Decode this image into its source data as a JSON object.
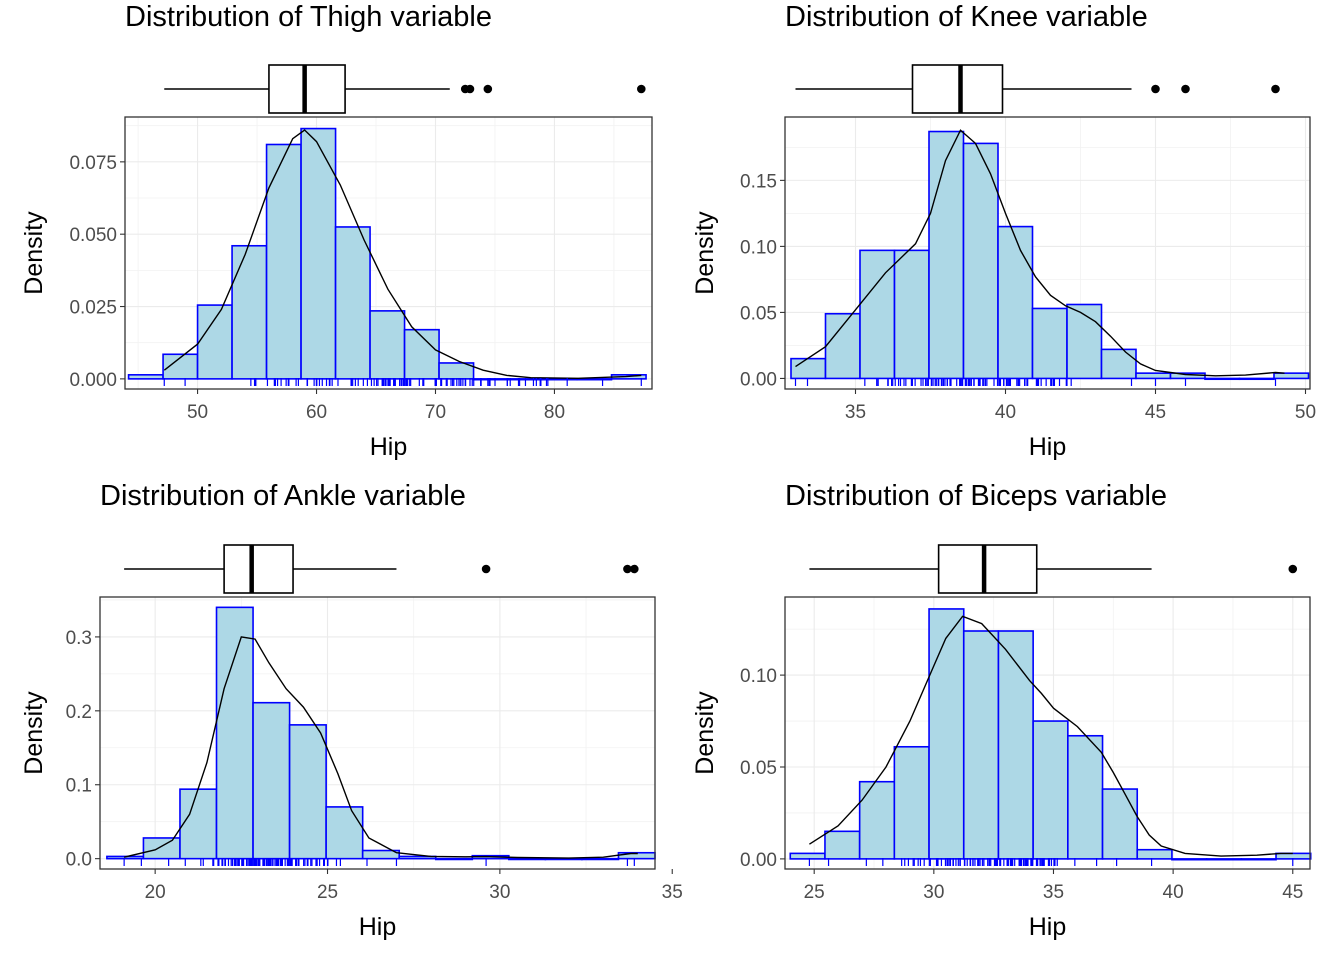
{
  "chart_data": [
    {
      "type": "histogram",
      "title": "Distribution of Thigh variable",
      "xlabel": "Hip",
      "ylabel": "Density",
      "xlim": [
        43.9,
        88.2
      ],
      "ylim": [
        -0.0035,
        0.0905
      ],
      "x_ticks": [
        50,
        60,
        70,
        80
      ],
      "y_ticks": [
        0.0,
        0.025,
        0.05,
        0.075
      ],
      "y_tick_labels": [
        "0.000",
        "0.025",
        "0.050",
        "0.075"
      ],
      "bin_width": 2.9,
      "bins": [
        {
          "x0": 44.2,
          "x1": 47.1,
          "density": 0.0014
        },
        {
          "x0": 47.1,
          "x1": 50.0,
          "density": 0.0085
        },
        {
          "x0": 50.0,
          "x1": 52.9,
          "density": 0.0255
        },
        {
          "x0": 52.9,
          "x1": 55.8,
          "density": 0.046
        },
        {
          "x0": 55.8,
          "x1": 58.7,
          "density": 0.081
        },
        {
          "x0": 58.7,
          "x1": 61.6,
          "density": 0.0865
        },
        {
          "x0": 61.6,
          "x1": 64.5,
          "density": 0.0525
        },
        {
          "x0": 64.5,
          "x1": 67.4,
          "density": 0.0235
        },
        {
          "x0": 67.4,
          "x1": 70.3,
          "density": 0.017
        },
        {
          "x0": 70.3,
          "x1": 73.2,
          "density": 0.0055
        },
        {
          "x0": 73.2,
          "x1": 76.1,
          "density": 0.0
        },
        {
          "x0": 76.1,
          "x1": 79.0,
          "density": 0.0
        },
        {
          "x0": 79.0,
          "x1": 81.9,
          "density": 0.0
        },
        {
          "x0": 81.9,
          "x1": 84.8,
          "density": 0.0
        },
        {
          "x0": 84.8,
          "x1": 87.7,
          "density": 0.0014
        }
      ],
      "density_curve": [
        [
          47.2,
          0.003
        ],
        [
          50,
          0.012
        ],
        [
          52,
          0.024
        ],
        [
          54,
          0.043
        ],
        [
          56,
          0.066
        ],
        [
          58,
          0.083
        ],
        [
          59,
          0.086
        ],
        [
          60,
          0.082
        ],
        [
          62,
          0.067
        ],
        [
          64,
          0.048
        ],
        [
          66,
          0.031
        ],
        [
          68,
          0.018
        ],
        [
          70,
          0.01
        ],
        [
          72,
          0.006
        ],
        [
          74,
          0.003
        ],
        [
          76,
          0.0012
        ],
        [
          78,
          0.0004
        ],
        [
          82,
          0.0002
        ],
        [
          86,
          0.0008
        ],
        [
          87.3,
          0.0012
        ]
      ],
      "rug_range": [
        47.2,
        87.3
      ],
      "rug_extra": [
        47.2,
        72.5,
        72.9,
        74.4,
        87.3
      ],
      "boxplot": {
        "min": 47.2,
        "q1": 56.0,
        "median": 59.0,
        "q3": 62.4,
        "max": 71.2,
        "outliers": [
          72.5,
          72.9,
          74.4,
          87.3
        ]
      }
    },
    {
      "type": "histogram",
      "title": "Distribution of Knee variable",
      "xlabel": "Hip",
      "ylabel": "Density",
      "xlim": [
        32.65,
        50.15
      ],
      "ylim": [
        -0.008,
        0.198
      ],
      "x_ticks": [
        35,
        40,
        45,
        50
      ],
      "y_ticks": [
        0.0,
        0.05,
        0.1,
        0.15
      ],
      "y_tick_labels": [
        "0.00",
        "0.05",
        "0.10",
        "0.15"
      ],
      "bin_width": 1.15,
      "bins": [
        {
          "x0": 32.85,
          "x1": 34.0,
          "density": 0.015
        },
        {
          "x0": 34.0,
          "x1": 35.15,
          "density": 0.049
        },
        {
          "x0": 35.15,
          "x1": 36.3,
          "density": 0.097
        },
        {
          "x0": 36.3,
          "x1": 37.45,
          "density": 0.097
        },
        {
          "x0": 37.45,
          "x1": 38.6,
          "density": 0.187
        },
        {
          "x0": 38.6,
          "x1": 39.75,
          "density": 0.178
        },
        {
          "x0": 39.75,
          "x1": 40.9,
          "density": 0.115
        },
        {
          "x0": 40.9,
          "x1": 42.05,
          "density": 0.053
        },
        {
          "x0": 42.05,
          "x1": 43.2,
          "density": 0.056
        },
        {
          "x0": 43.2,
          "x1": 44.35,
          "density": 0.022
        },
        {
          "x0": 44.35,
          "x1": 45.5,
          "density": 0.004
        },
        {
          "x0": 45.5,
          "x1": 46.65,
          "density": 0.004
        },
        {
          "x0": 46.65,
          "x1": 47.8,
          "density": 0.0
        },
        {
          "x0": 47.8,
          "x1": 48.95,
          "density": 0.0
        },
        {
          "x0": 48.95,
          "x1": 50.1,
          "density": 0.004
        }
      ],
      "density_curve": [
        [
          33.0,
          0.009
        ],
        [
          34,
          0.024
        ],
        [
          35,
          0.052
        ],
        [
          36,
          0.08
        ],
        [
          37,
          0.102
        ],
        [
          37.5,
          0.125
        ],
        [
          38,
          0.165
        ],
        [
          38.5,
          0.188
        ],
        [
          39,
          0.178
        ],
        [
          39.5,
          0.155
        ],
        [
          40,
          0.125
        ],
        [
          40.5,
          0.097
        ],
        [
          41,
          0.077
        ],
        [
          41.5,
          0.063
        ],
        [
          42,
          0.055
        ],
        [
          42.5,
          0.05
        ],
        [
          43,
          0.043
        ],
        [
          43.5,
          0.032
        ],
        [
          44,
          0.02
        ],
        [
          44.5,
          0.011
        ],
        [
          45,
          0.006
        ],
        [
          46,
          0.003
        ],
        [
          47,
          0.002
        ],
        [
          48,
          0.0025
        ],
        [
          49,
          0.0045
        ],
        [
          49.3,
          0.004
        ]
      ],
      "rug_range": [
        34.0,
        43.8
      ],
      "rug_extra": [
        33.0,
        33.4,
        44.2,
        45.0,
        46.0,
        49.0
      ],
      "boxplot": {
        "min": 33.0,
        "q1": 36.9,
        "median": 38.5,
        "q3": 39.9,
        "max": 44.2,
        "outliers": [
          45.0,
          46.0,
          49.0
        ]
      }
    },
    {
      "type": "histogram",
      "title": "Distribution of Ankle variable",
      "xlabel": "Hip",
      "ylabel": "Density",
      "xlim": [
        18.4,
        34.5
      ],
      "ylim": [
        -0.014,
        0.354
      ],
      "x_ticks": [
        20,
        25,
        30,
        35
      ],
      "y_ticks": [
        0.0,
        0.1,
        0.2,
        0.3
      ],
      "y_tick_labels": [
        "0.0",
        "0.1",
        "0.2",
        "0.3"
      ],
      "bin_width": 1.06,
      "bins": [
        {
          "x0": 18.6,
          "x1": 19.66,
          "density": 0.003
        },
        {
          "x0": 19.66,
          "x1": 20.72,
          "density": 0.028
        },
        {
          "x0": 20.72,
          "x1": 21.78,
          "density": 0.094
        },
        {
          "x0": 21.78,
          "x1": 22.84,
          "density": 0.34
        },
        {
          "x0": 22.84,
          "x1": 23.9,
          "density": 0.211
        },
        {
          "x0": 23.9,
          "x1": 24.96,
          "density": 0.181
        },
        {
          "x0": 24.96,
          "x1": 26.02,
          "density": 0.07
        },
        {
          "x0": 26.02,
          "x1": 27.08,
          "density": 0.011
        },
        {
          "x0": 27.08,
          "x1": 28.14,
          "density": 0.003
        },
        {
          "x0": 28.14,
          "x1": 29.2,
          "density": 0.0
        },
        {
          "x0": 29.2,
          "x1": 30.26,
          "density": 0.004
        },
        {
          "x0": 30.26,
          "x1": 31.32,
          "density": 0.0
        },
        {
          "x0": 31.32,
          "x1": 32.38,
          "density": 0.0
        },
        {
          "x0": 32.38,
          "x1": 33.44,
          "density": 0.0
        },
        {
          "x0": 33.44,
          "x1": 34.5,
          "density": 0.008
        }
      ],
      "density_curve": [
        [
          19.1,
          0.002
        ],
        [
          20,
          0.012
        ],
        [
          20.5,
          0.025
        ],
        [
          21,
          0.06
        ],
        [
          21.5,
          0.13
        ],
        [
          22,
          0.23
        ],
        [
          22.5,
          0.3
        ],
        [
          22.9,
          0.297
        ],
        [
          23.3,
          0.265
        ],
        [
          23.8,
          0.23
        ],
        [
          24.3,
          0.205
        ],
        [
          24.8,
          0.17
        ],
        [
          25.3,
          0.115
        ],
        [
          25.7,
          0.065
        ],
        [
          26.2,
          0.028
        ],
        [
          27,
          0.008
        ],
        [
          28,
          0.003
        ],
        [
          29,
          0.0025
        ],
        [
          29.6,
          0.0028
        ],
        [
          30.5,
          0.0015
        ],
        [
          32,
          0.0008
        ],
        [
          33,
          0.002
        ],
        [
          33.8,
          0.007
        ],
        [
          34.0,
          0.007
        ]
      ],
      "rug_range": [
        20.1,
        26.3
      ],
      "rug_extra": [
        19.1,
        19.6,
        27.0,
        29.6,
        33.7,
        33.9
      ],
      "boxplot": {
        "min": 19.1,
        "q1": 22.0,
        "median": 22.8,
        "q3": 24.0,
        "max": 27.0,
        "outliers": [
          29.6,
          33.7,
          33.9
        ]
      }
    },
    {
      "type": "histogram",
      "title": "Distribution of Biceps variable",
      "xlabel": "Hip",
      "ylabel": "Density",
      "xlim": [
        23.78,
        45.72
      ],
      "ylim": [
        -0.0055,
        0.1425
      ],
      "x_ticks": [
        25,
        30,
        35,
        40,
        45
      ],
      "y_ticks": [
        0.0,
        0.05,
        0.1
      ],
      "y_tick_labels": [
        "0.00",
        "0.05",
        "0.10"
      ],
      "bin_width": 1.45,
      "bins": [
        {
          "x0": 24.0,
          "x1": 25.45,
          "density": 0.003
        },
        {
          "x0": 25.45,
          "x1": 26.9,
          "density": 0.015
        },
        {
          "x0": 26.9,
          "x1": 28.35,
          "density": 0.042
        },
        {
          "x0": 28.35,
          "x1": 29.8,
          "density": 0.061
        },
        {
          "x0": 29.8,
          "x1": 31.25,
          "density": 0.136
        },
        {
          "x0": 31.25,
          "x1": 32.7,
          "density": 0.124
        },
        {
          "x0": 32.7,
          "x1": 34.15,
          "density": 0.124
        },
        {
          "x0": 34.15,
          "x1": 35.6,
          "density": 0.075
        },
        {
          "x0": 35.6,
          "x1": 37.05,
          "density": 0.067
        },
        {
          "x0": 37.05,
          "x1": 38.5,
          "density": 0.038
        },
        {
          "x0": 38.5,
          "x1": 39.95,
          "density": 0.005
        },
        {
          "x0": 39.95,
          "x1": 41.4,
          "density": 0.0
        },
        {
          "x0": 41.4,
          "x1": 42.85,
          "density": 0.0
        },
        {
          "x0": 42.85,
          "x1": 44.3,
          "density": 0.0
        },
        {
          "x0": 44.3,
          "x1": 45.75,
          "density": 0.003
        }
      ],
      "density_curve": [
        [
          24.8,
          0.008
        ],
        [
          26,
          0.018
        ],
        [
          27,
          0.032
        ],
        [
          28,
          0.05
        ],
        [
          29,
          0.075
        ],
        [
          30,
          0.105
        ],
        [
          30.5,
          0.12
        ],
        [
          31.2,
          0.132
        ],
        [
          32,
          0.128
        ],
        [
          33,
          0.114
        ],
        [
          34,
          0.097
        ],
        [
          34.5,
          0.09
        ],
        [
          35,
          0.082
        ],
        [
          36,
          0.072
        ],
        [
          37,
          0.058
        ],
        [
          37.5,
          0.047
        ],
        [
          38,
          0.035
        ],
        [
          38.5,
          0.023
        ],
        [
          39,
          0.013
        ],
        [
          39.5,
          0.007
        ],
        [
          40.5,
          0.003
        ],
        [
          42,
          0.0015
        ],
        [
          43.5,
          0.002
        ],
        [
          44.5,
          0.003
        ],
        [
          45.0,
          0.003
        ]
      ],
      "rug_range": [
        26.5,
        38.3
      ],
      "rug_extra": [
        24.8,
        25.6,
        39.1,
        45.0
      ],
      "boxplot": {
        "min": 24.8,
        "q1": 30.2,
        "median": 32.1,
        "q3": 34.3,
        "max": 39.1,
        "outliers": [
          45.0
        ]
      }
    }
  ]
}
